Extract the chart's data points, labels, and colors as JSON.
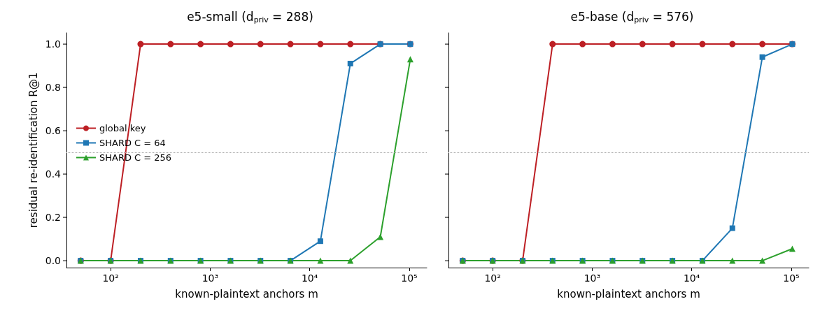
{
  "chart_data": [
    {
      "type": "line",
      "title": "e5-small (d$_{priv}$ = 288)",
      "xlabel": "known-plaintext anchors m",
      "ylabel": "residual re-identification R@1",
      "log": "x",
      "xlim": [
        36,
        150000
      ],
      "xticks": [
        {
          "value": 100,
          "label": "10²"
        },
        {
          "value": 1000,
          "label": "10³"
        },
        {
          "value": 10000,
          "label": "10⁴"
        },
        {
          "value": 100000,
          "label": "10⁵"
        }
      ],
      "ylim": [
        -0.032,
        1.052
      ],
      "yticks": [
        {
          "value": 0,
          "label": "0.0"
        },
        0.2,
        0.4,
        0.6,
        0.8,
        {
          "value": 1,
          "label": "1.0"
        }
      ],
      "grid": false,
      "legend": "left",
      "line_style": "solid",
      "x": [
        50,
        100,
        200,
        400,
        800,
        1600,
        3200,
        6400,
        12800,
        25600,
        51200,
        102400
      ],
      "ref_lines": [
        {
          "axis": "y",
          "value": 0.5,
          "color": "#aaaaaa",
          "line_style": "dotted"
        }
      ],
      "series": [
        {
          "name": "global key",
          "color": "#bd1f24",
          "marker": "circle",
          "values": [
            0,
            0,
            1,
            1,
            1,
            1,
            1,
            1,
            1,
            1,
            1,
            1
          ]
        },
        {
          "name": "SHARD C = 64",
          "color": "#1f77b4",
          "marker": "square",
          "values": [
            0,
            0,
            0,
            0,
            0,
            0,
            0,
            0,
            0.09,
            0.91,
            1,
            1
          ]
        },
        {
          "name": "SHARD C = 256",
          "color": "#2ca02c",
          "marker": "triangle",
          "values": [
            0,
            0,
            0,
            0,
            0,
            0,
            0,
            0,
            0,
            0,
            0.11,
            0.93
          ]
        }
      ]
    },
    {
      "type": "line",
      "title": "e5-base (d$_{priv}$ = 576)",
      "xlabel": "known-plaintext anchors m",
      "log": "x",
      "tick_labels": "x",
      "xlim": [
        36,
        150000
      ],
      "xticks": [
        {
          "value": 100,
          "label": "10²"
        },
        {
          "value": 1000,
          "label": "10³"
        },
        {
          "value": 10000,
          "label": "10⁴"
        },
        {
          "value": 100000,
          "label": "10⁵"
        }
      ],
      "ylim": [
        -0.032,
        1.052
      ],
      "yticks": [
        {
          "value": 0,
          "label": null
        },
        {
          "value": 0.2,
          "label": null
        },
        {
          "value": 0.4,
          "label": null
        },
        {
          "value": 0.6,
          "label": null
        },
        {
          "value": 0.8,
          "label": null
        },
        {
          "value": 1,
          "label": null
        }
      ],
      "grid": false,
      "line_style": "solid",
      "x": [
        50,
        100,
        200,
        400,
        800,
        1600,
        3200,
        6400,
        12800,
        25600,
        51200,
        102400
      ],
      "ref_lines": [
        {
          "axis": "y",
          "value": 0.5,
          "color": "#aaaaaa",
          "line_style": "dotted"
        }
      ],
      "series": [
        {
          "color": "#bd1f24",
          "marker": "circle",
          "values": [
            0,
            0,
            0,
            1,
            1,
            1,
            1,
            1,
            1,
            1,
            1,
            1
          ]
        },
        {
          "color": "#1f77b4",
          "marker": "square",
          "values": [
            0,
            0,
            0,
            0,
            0,
            0,
            0,
            0,
            0,
            0.15,
            0.94,
            1
          ]
        },
        {
          "color": "#2ca02c",
          "marker": "triangle",
          "values": [
            0,
            0,
            0,
            0,
            0,
            0,
            0,
            0,
            0,
            0,
            0,
            0.055
          ]
        }
      ]
    }
  ]
}
